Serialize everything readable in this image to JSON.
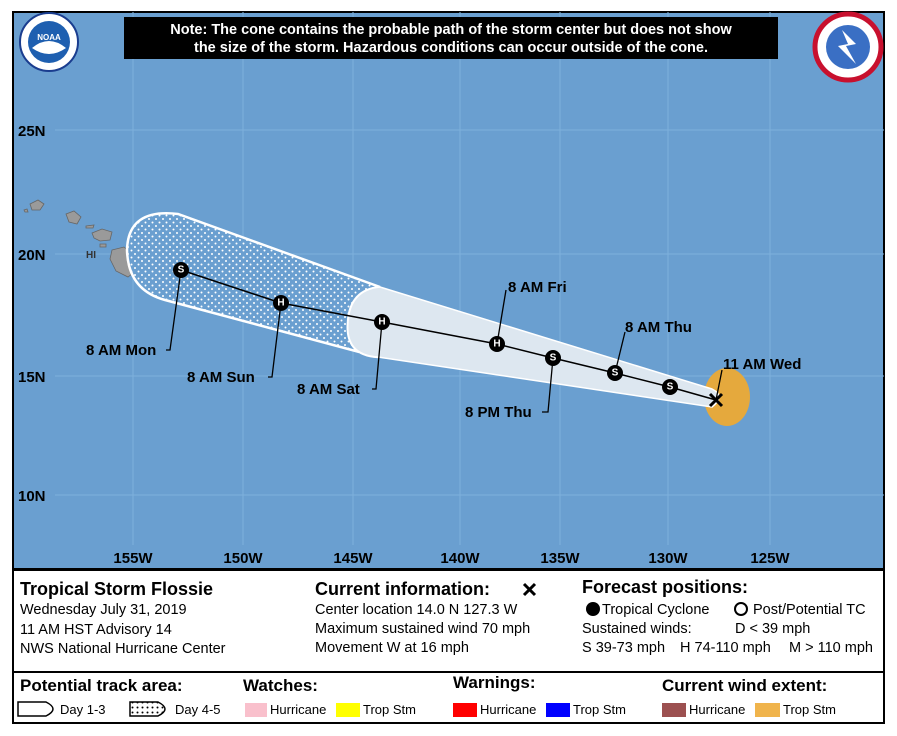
{
  "note": [
    "Note: The cone contains the probable path of the storm center but does not show",
    "the size of the storm. Hazardous conditions can occur outside of the cone."
  ],
  "logos": {
    "noaa": "NOAA"
  },
  "map": {
    "lat_labels": [
      "25N",
      "20N",
      "15N",
      "10N"
    ],
    "lon_labels": [
      "155W",
      "150W",
      "145W",
      "140W",
      "135W",
      "130W",
      "125W"
    ],
    "island_label": "HI",
    "time_labels": [
      "11 AM Wed",
      "8 AM Thu",
      "8 PM Thu",
      "8 AM Fri",
      "8 AM Sat",
      "8 AM Sun",
      "8 AM Mon"
    ],
    "symbols": [
      "S",
      "S",
      "S",
      "H",
      "H",
      "H",
      "S"
    ]
  },
  "storm": {
    "name": "Tropical Storm Flossie",
    "date": "Wednesday July 31, 2019",
    "advisory": "11 AM HST Advisory 14",
    "center": "NWS National Hurricane Center"
  },
  "current": {
    "title": "Current information:",
    "lines": [
      "Center location 14.0 N 127.3 W",
      "Maximum sustained wind 70 mph",
      "Movement W at 16 mph"
    ]
  },
  "forecast": {
    "title": "Forecast positions:",
    "tropical": "Tropical Cyclone",
    "post": "Post/Potential TC",
    "winds_label": "Sustained winds:",
    "d": "D < 39 mph",
    "s": "S 39-73 mph",
    "h": "H 74-110 mph",
    "m": "M > 110 mph"
  },
  "legend": {
    "track": {
      "title": "Potential track area:",
      "day13": "Day 1-3",
      "day45": "Day 4-5"
    },
    "watches": {
      "title": "Watches:",
      "hurricane": "Hurricane",
      "trop": "Trop Stm"
    },
    "warnings": {
      "title": "Warnings:",
      "hurricane": "Hurricane",
      "trop": "Trop Stm"
    },
    "wind": {
      "title": "Current wind extent:",
      "hurricane": "Hurricane",
      "trop": "Trop Stm"
    }
  }
}
